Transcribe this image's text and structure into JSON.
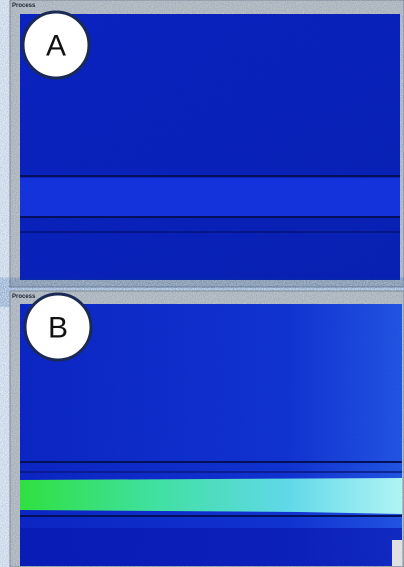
{
  "panels": [
    {
      "title": "Process",
      "label": "A"
    },
    {
      "title": "Process",
      "label": "B"
    }
  ]
}
